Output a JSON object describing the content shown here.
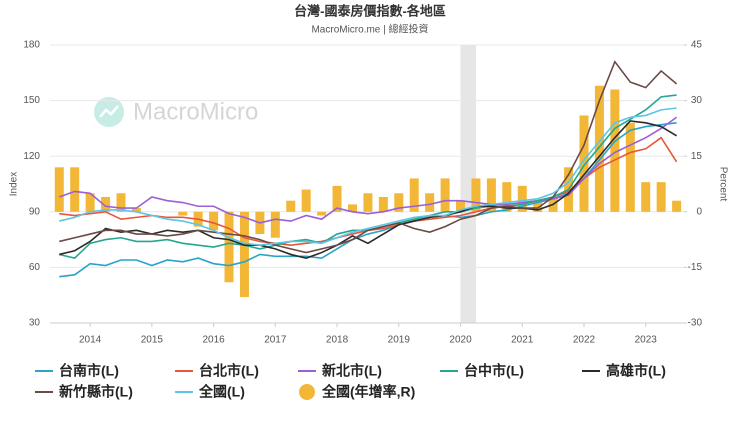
{
  "chart_data": {
    "type": "combo",
    "title": "台灣-國泰房價指數-各地區",
    "subtitle": "MacroMicro.me | 總經投資",
    "watermark": "MacroMicro",
    "y_label": "Index",
    "y2_label": "Percent",
    "x": [
      2013.5,
      2013.75,
      2014,
      2014.25,
      2014.5,
      2014.75,
      2015,
      2015.25,
      2015.5,
      2015.75,
      2016,
      2016.25,
      2016.5,
      2016.75,
      2017,
      2017.25,
      2017.5,
      2017.75,
      2018,
      2018.25,
      2018.5,
      2018.75,
      2019,
      2019.25,
      2019.5,
      2019.75,
      2020,
      2020.25,
      2020.5,
      2020.75,
      2021,
      2021.25,
      2021.5,
      2021.75,
      2022,
      2022.25,
      2022.5,
      2022.75,
      2023,
      2023.25,
      2023.5
    ],
    "xlim": [
      2013.35,
      2023.62
    ],
    "xticks": [
      2014,
      2015,
      2016,
      2017,
      2018,
      2019,
      2020,
      2021,
      2022,
      2023
    ],
    "ylim": [
      30,
      180
    ],
    "yticks": [
      30,
      60,
      90,
      120,
      150,
      180
    ],
    "y2lim": [
      -30,
      45
    ],
    "y2ticks": [
      -30,
      -15,
      0,
      15,
      30,
      45
    ],
    "grid": true,
    "legend": "bottom",
    "shaded_range": [
      2020.0,
      2020.25
    ],
    "series": [
      {
        "name": "台南市(L)",
        "type": "line",
        "color": "#2ba3c8",
        "values": [
          55,
          56,
          62,
          61,
          64,
          64,
          61,
          64,
          63,
          65,
          62,
          61,
          63,
          67,
          66,
          66,
          66,
          65,
          70,
          75,
          78,
          80,
          83,
          85,
          87,
          88,
          87,
          88,
          90,
          91,
          93,
          95,
          97,
          100,
          108,
          118,
          128,
          134,
          136,
          137,
          138
        ]
      },
      {
        "name": "台北市(L)",
        "type": "line",
        "color": "#e8573c",
        "values": [
          89,
          88,
          89,
          90,
          86,
          87,
          88,
          87,
          87,
          86,
          84,
          81,
          76,
          74,
          73,
          72,
          73,
          74,
          76,
          78,
          80,
          81,
          83,
          85,
          86,
          87,
          88,
          90,
          92,
          93,
          94,
          96,
          98,
          101,
          108,
          114,
          118,
          122,
          124,
          130,
          117
        ]
      },
      {
        "name": "新北市(L)",
        "type": "line",
        "color": "#9b5fd6",
        "values": [
          98,
          101,
          100,
          93,
          92,
          92,
          98,
          96,
          95,
          93,
          93,
          89,
          87,
          84,
          86,
          85,
          88,
          86,
          92,
          90,
          89,
          90,
          92,
          93,
          94,
          96,
          96,
          95,
          94,
          94,
          95,
          96,
          97,
          99,
          108,
          116,
          122,
          126,
          130,
          135,
          141
        ]
      },
      {
        "name": "台中市(L)",
        "type": "line",
        "color": "#26a68f",
        "values": [
          67,
          65,
          73,
          75,
          76,
          74,
          74,
          75,
          73,
          72,
          71,
          73,
          72,
          70,
          72,
          74,
          75,
          73,
          78,
          80,
          80,
          82,
          84,
          86,
          88,
          90,
          90,
          92,
          93,
          93,
          94,
          96,
          98,
          102,
          115,
          125,
          135,
          140,
          145,
          152,
          153
        ]
      },
      {
        "name": "高雄市(L)",
        "type": "line",
        "color": "#2b2b2b",
        "values": [
          67,
          69,
          74,
          81,
          79,
          80,
          78,
          80,
          79,
          80,
          76,
          75,
          72,
          72,
          70,
          67,
          65,
          68,
          72,
          77,
          73,
          78,
          83,
          85,
          87,
          88,
          90,
          93,
          93,
          92,
          92,
          91,
          94,
          100,
          110,
          120,
          130,
          139,
          138,
          136,
          131
        ]
      },
      {
        "name": "新竹縣市(L)",
        "type": "line",
        "color": "#6b4a45",
        "values": [
          74,
          76,
          78,
          80,
          80,
          78,
          78,
          77,
          78,
          80,
          79,
          78,
          77,
          75,
          72,
          70,
          68,
          70,
          72,
          75,
          80,
          82,
          84,
          81,
          79,
          82,
          86,
          88,
          92,
          93,
          92,
          92,
          98,
          110,
          126,
          150,
          171,
          160,
          157,
          166,
          159
        ]
      },
      {
        "name": "全國(L)",
        "type": "line",
        "color": "#5cc6e6",
        "values": [
          85,
          87,
          90,
          91,
          91,
          90,
          88,
          86,
          85,
          83,
          80,
          76,
          73,
          72,
          73,
          74,
          74,
          73,
          76,
          79,
          81,
          83,
          85,
          87,
          88,
          88,
          91,
          93,
          94,
          95,
          96,
          97,
          100,
          106,
          118,
          128,
          138,
          141,
          142,
          145,
          146
        ]
      },
      {
        "name": "全國(年增率,R)",
        "type": "bar",
        "axis": "y2",
        "color": "#f2b737",
        "values": [
          12,
          12,
          5,
          4,
          5,
          1,
          0,
          0,
          -1,
          -4,
          -5,
          -19,
          -23,
          -6,
          -7,
          3,
          6,
          -1,
          7,
          2,
          5,
          4,
          5,
          9,
          5,
          9,
          3,
          9,
          9,
          8,
          7,
          3,
          4,
          12,
          26,
          34,
          33,
          24,
          8,
          8,
          3
        ]
      }
    ]
  }
}
